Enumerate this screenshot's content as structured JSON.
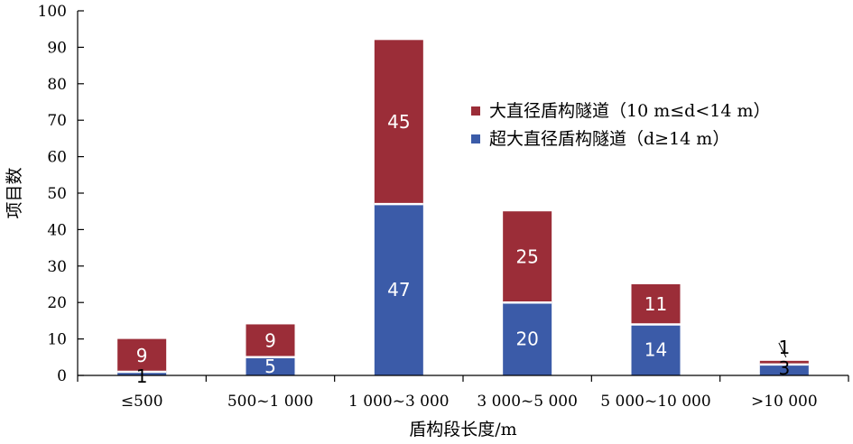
{
  "chart_data": {
    "type": "bar",
    "stacked": true,
    "categories": [
      "≤500",
      "500~1 000",
      "1 000~3 000",
      "3 000~5 000",
      "5 000~10 000",
      ">10 000"
    ],
    "series": [
      {
        "name": "超大直径盾构隧道（d≥14 m）",
        "color": "#3b5ba8",
        "values": [
          1,
          5,
          47,
          20,
          14,
          3
        ]
      },
      {
        "name": "大直径盾构隧道（10 m≤d<14 m）",
        "color": "#9b2d38",
        "values": [
          9,
          9,
          45,
          25,
          11,
          1
        ]
      }
    ],
    "xlabel": "盾构段长度/m",
    "ylabel": "项目数",
    "ylim": [
      0,
      100
    ],
    "yticks": [
      0,
      10,
      20,
      30,
      40,
      50,
      60,
      70,
      80,
      90,
      100
    ],
    "legend_position": "right",
    "grid": false
  }
}
